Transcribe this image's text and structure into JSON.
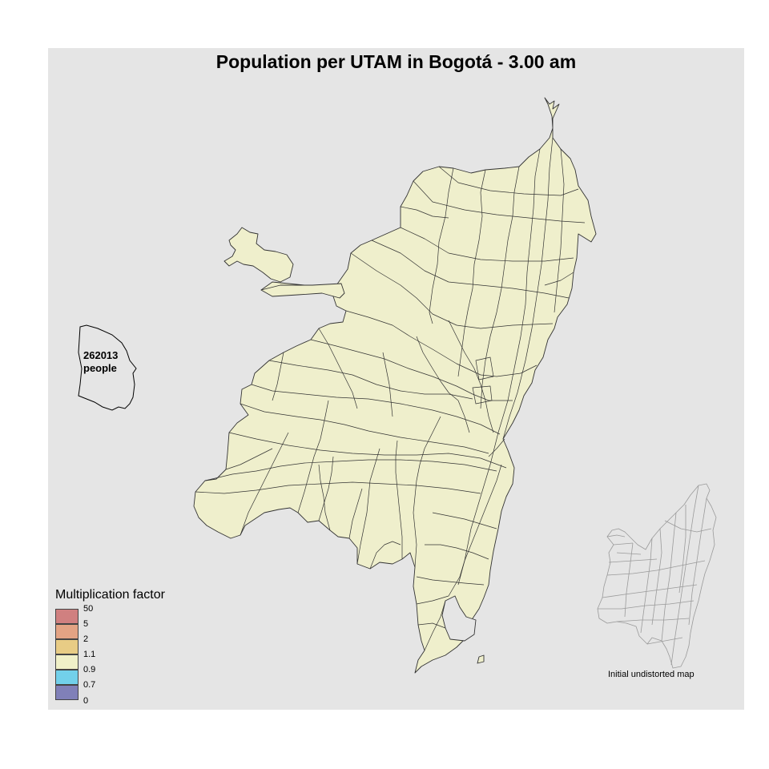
{
  "title": "Population per UTAM in Bogotá - 3.00 am",
  "map": {
    "fill_color": "#efefcc",
    "border_color": "#333333",
    "inset_border_color": "#9a9a9a"
  },
  "scale_box": {
    "value": "262013",
    "unit": "people"
  },
  "legend": {
    "title": "Multiplication factor",
    "breaks": [
      "50",
      "5",
      "2",
      "1.1",
      "0.9",
      "0.7",
      "0"
    ],
    "colors": [
      "#d08080",
      "#e3a384",
      "#e8cc85",
      "#f0f0c8",
      "#72d0ea",
      "#8080b8"
    ],
    "active_class": "0.9 – 1.1"
  },
  "inset": {
    "caption": "Initial undistorted map"
  }
}
